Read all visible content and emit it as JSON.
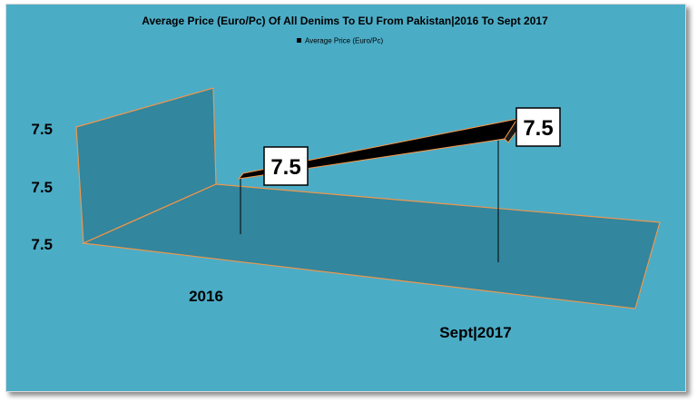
{
  "chart_data": {
    "type": "line",
    "title": "Average Price (Euro/Pc) Of All Denims To EU From Pakistan|2016 To Sept 2017",
    "categories": [
      "2016",
      "Sept|2017"
    ],
    "series": [
      {
        "name": "Average Price (Euro/Pc)",
        "values": [
          7.5,
          7.5
        ],
        "color": "#000000"
      }
    ],
    "data_labels": [
      "7.5",
      "7.5"
    ],
    "y_ticks": [
      "7.5",
      "7.5",
      "7.5"
    ],
    "legend_position": "top",
    "projection": "3d",
    "grid": false,
    "colors": {
      "background": "#4bacc6",
      "walls": "#31849b",
      "wall_edge": "#f79646",
      "ribbon": "#000000"
    }
  }
}
